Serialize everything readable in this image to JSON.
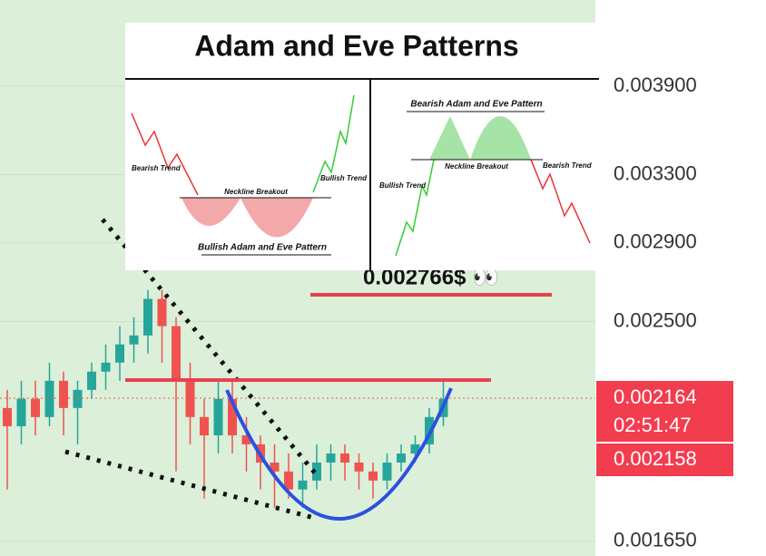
{
  "chart_data": {
    "type": "candlestick",
    "scale": "log",
    "ylim": [
      0.001605,
      0.00459
    ],
    "yticks": [
      {
        "value": 0.0039,
        "label": "0.003900"
      },
      {
        "value": 0.0033,
        "label": "0.003300"
      },
      {
        "value": 0.0029,
        "label": "0.002900"
      },
      {
        "value": 0.0025,
        "label": "0.002500"
      },
      {
        "value": 0.00165,
        "label": "0.001650"
      }
    ],
    "grid": true,
    "up_color": "#26a69a",
    "down_color": "#ef5350",
    "open": [
      0.002123,
      0.002051,
      0.00216,
      0.002087,
      0.002235,
      0.002123,
      0.002197,
      0.002274,
      0.002313,
      0.002394,
      0.002435,
      0.002609,
      0.002478,
      0.002235,
      0.002087,
      0.002016,
      0.00216,
      0.002016,
      0.001982,
      0.001915,
      0.001883,
      0.00182,
      0.001851,
      0.001915,
      0.001948,
      0.001915,
      0.001883,
      0.001851,
      0.001915,
      0.001948,
      0.001982,
      0.002087
    ],
    "high": [
      0.002197,
      0.002235,
      0.002235,
      0.002313,
      0.002274,
      0.002235,
      0.002313,
      0.002394,
      0.002478,
      0.002521,
      0.002653,
      0.002653,
      0.002521,
      0.002313,
      0.00216,
      0.002235,
      0.002235,
      0.002087,
      0.002016,
      0.001982,
      0.001948,
      0.001915,
      0.001982,
      0.001982,
      0.001982,
      0.001948,
      0.001915,
      0.001948,
      0.001982,
      0.002016,
      0.002123,
      0.002235
    ],
    "low": [
      0.00182,
      0.001982,
      0.002016,
      0.002051,
      0.002016,
      0.001982,
      0.00216,
      0.002197,
      0.002235,
      0.002313,
      0.002353,
      0.002313,
      0.001883,
      0.001982,
      0.001789,
      0.001948,
      0.001948,
      0.001883,
      0.00182,
      0.001758,
      0.001789,
      0.001758,
      0.00182,
      0.001851,
      0.001851,
      0.00182,
      0.001789,
      0.00182,
      0.001883,
      0.001915,
      0.001948,
      0.002051
    ],
    "close": [
      0.002051,
      0.00216,
      0.002087,
      0.002235,
      0.002123,
      0.002197,
      0.002274,
      0.002313,
      0.002394,
      0.002435,
      0.002609,
      0.002478,
      0.002235,
      0.002087,
      0.002016,
      0.00216,
      0.002016,
      0.001982,
      0.001915,
      0.001883,
      0.00182,
      0.001851,
      0.001915,
      0.001948,
      0.001915,
      0.001883,
      0.001851,
      0.001915,
      0.001948,
      0.001982,
      0.002087,
      0.00216
    ],
    "last_price": {
      "value": 0.002164,
      "label": "0.002164"
    },
    "countdown": "02:51:47",
    "bid_price": {
      "value": 0.002158,
      "label": "0.002158"
    },
    "annotation": "0.002766$ 👀"
  },
  "inset": {
    "title": "Adam and Eve Patterns",
    "bullish": {
      "trend_in": "Bearish Trend",
      "neckline": "Neckline Breakout",
      "trend_out": "Bullish Trend",
      "caption": "Bullish Adam and Eve Pattern"
    },
    "bearish": {
      "caption": "Bearish Adam and Eve Pattern",
      "neckline": "Neckline Breakout",
      "trend_in": "Bullish Trend",
      "trend_out": "Bearish Trend"
    }
  }
}
